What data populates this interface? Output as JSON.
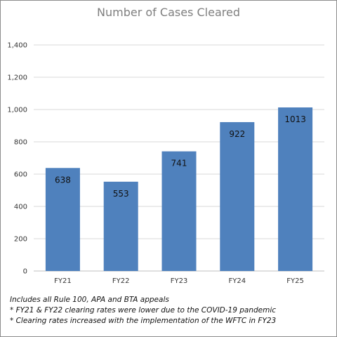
{
  "chart_data": {
    "type": "bar",
    "title": "Number of Cases Cleared",
    "categories": [
      "FY21",
      "FY22",
      "FY23",
      "FY24",
      "FY25"
    ],
    "values": [
      638,
      553,
      741,
      922,
      1013
    ],
    "data_labels": [
      "638",
      "553",
      "741",
      "922",
      "1013"
    ],
    "ylim": [
      0,
      1400
    ],
    "yticks": [
      0,
      200,
      400,
      600,
      800,
      1000,
      1200,
      1400
    ],
    "ytick_labels": [
      "0",
      "200",
      "400",
      "600",
      "800",
      "1,000",
      "1,200",
      "1,400"
    ],
    "grid": true,
    "bar_color": "#4f81bd",
    "notes": [
      "Includes all Rule 100, APA and BTA appeals",
      "* FY21 & FY22 clearing rates were lower due to the COVID-19 pandemic",
      "* Clearing rates increased with the implementation of the WFTC in FY23"
    ]
  }
}
